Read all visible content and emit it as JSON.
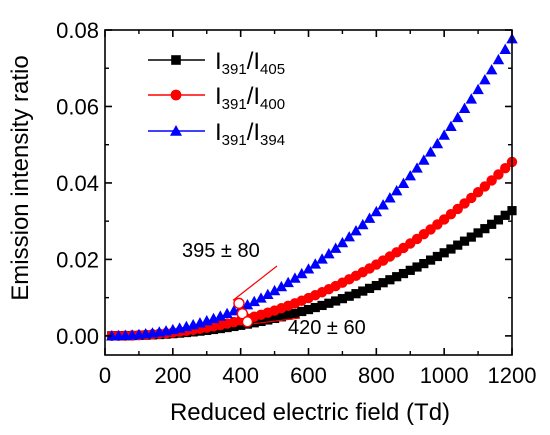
{
  "chart_data": {
    "type": "scatter",
    "xlabel": "Reduced electric field (Td)",
    "ylabel": "Emission intensity ratio",
    "xlim": [
      0,
      1200
    ],
    "ylim": [
      -0.005,
      0.08
    ],
    "x_ticks": [
      0,
      200,
      400,
      600,
      800,
      1000,
      1200
    ],
    "y_ticks": [
      0.0,
      0.02,
      0.04,
      0.06,
      0.08
    ],
    "x_tick_labels": [
      "0",
      "200",
      "400",
      "600",
      "800",
      "1000",
      "1200"
    ],
    "y_tick_labels": [
      "0.00",
      "0.02",
      "0.04",
      "0.06",
      "0.08"
    ],
    "legend_position": "top-center",
    "series": [
      {
        "label_main": "I",
        "label_sub1": "391",
        "label_slash": "/I",
        "label_sub2": "405",
        "marker": "square",
        "color": "#000000",
        "x_start": 20,
        "x_step": 20,
        "count": 60,
        "coef": 0.03275,
        "power": 2.25
      },
      {
        "label_main": "I",
        "label_sub1": "391",
        "label_slash": "/I",
        "label_sub2": "400",
        "marker": "circle",
        "color": "#ff0000",
        "x_start": 20,
        "x_step": 20,
        "count": 60,
        "coef": 0.0455,
        "power": 2.2
      },
      {
        "label_main": "I",
        "label_sub1": "391",
        "label_slash": "/I",
        "label_sub2": "394",
        "marker": "triangle",
        "color": "#0000ff",
        "x_start": 20,
        "x_step": 20,
        "count": 60,
        "coef": 0.0777,
        "power": 2.15
      }
    ],
    "annotations": [
      {
        "text": "395 ± 80",
        "x": 395,
        "y": 0.0085,
        "marker": "open-circle"
      },
      {
        "text": "420 ± 60",
        "x": 420,
        "y": 0.0037,
        "marker": "open-circle"
      }
    ],
    "extra_open_markers": [
      {
        "x": 405,
        "y": 0.0058
      }
    ]
  }
}
